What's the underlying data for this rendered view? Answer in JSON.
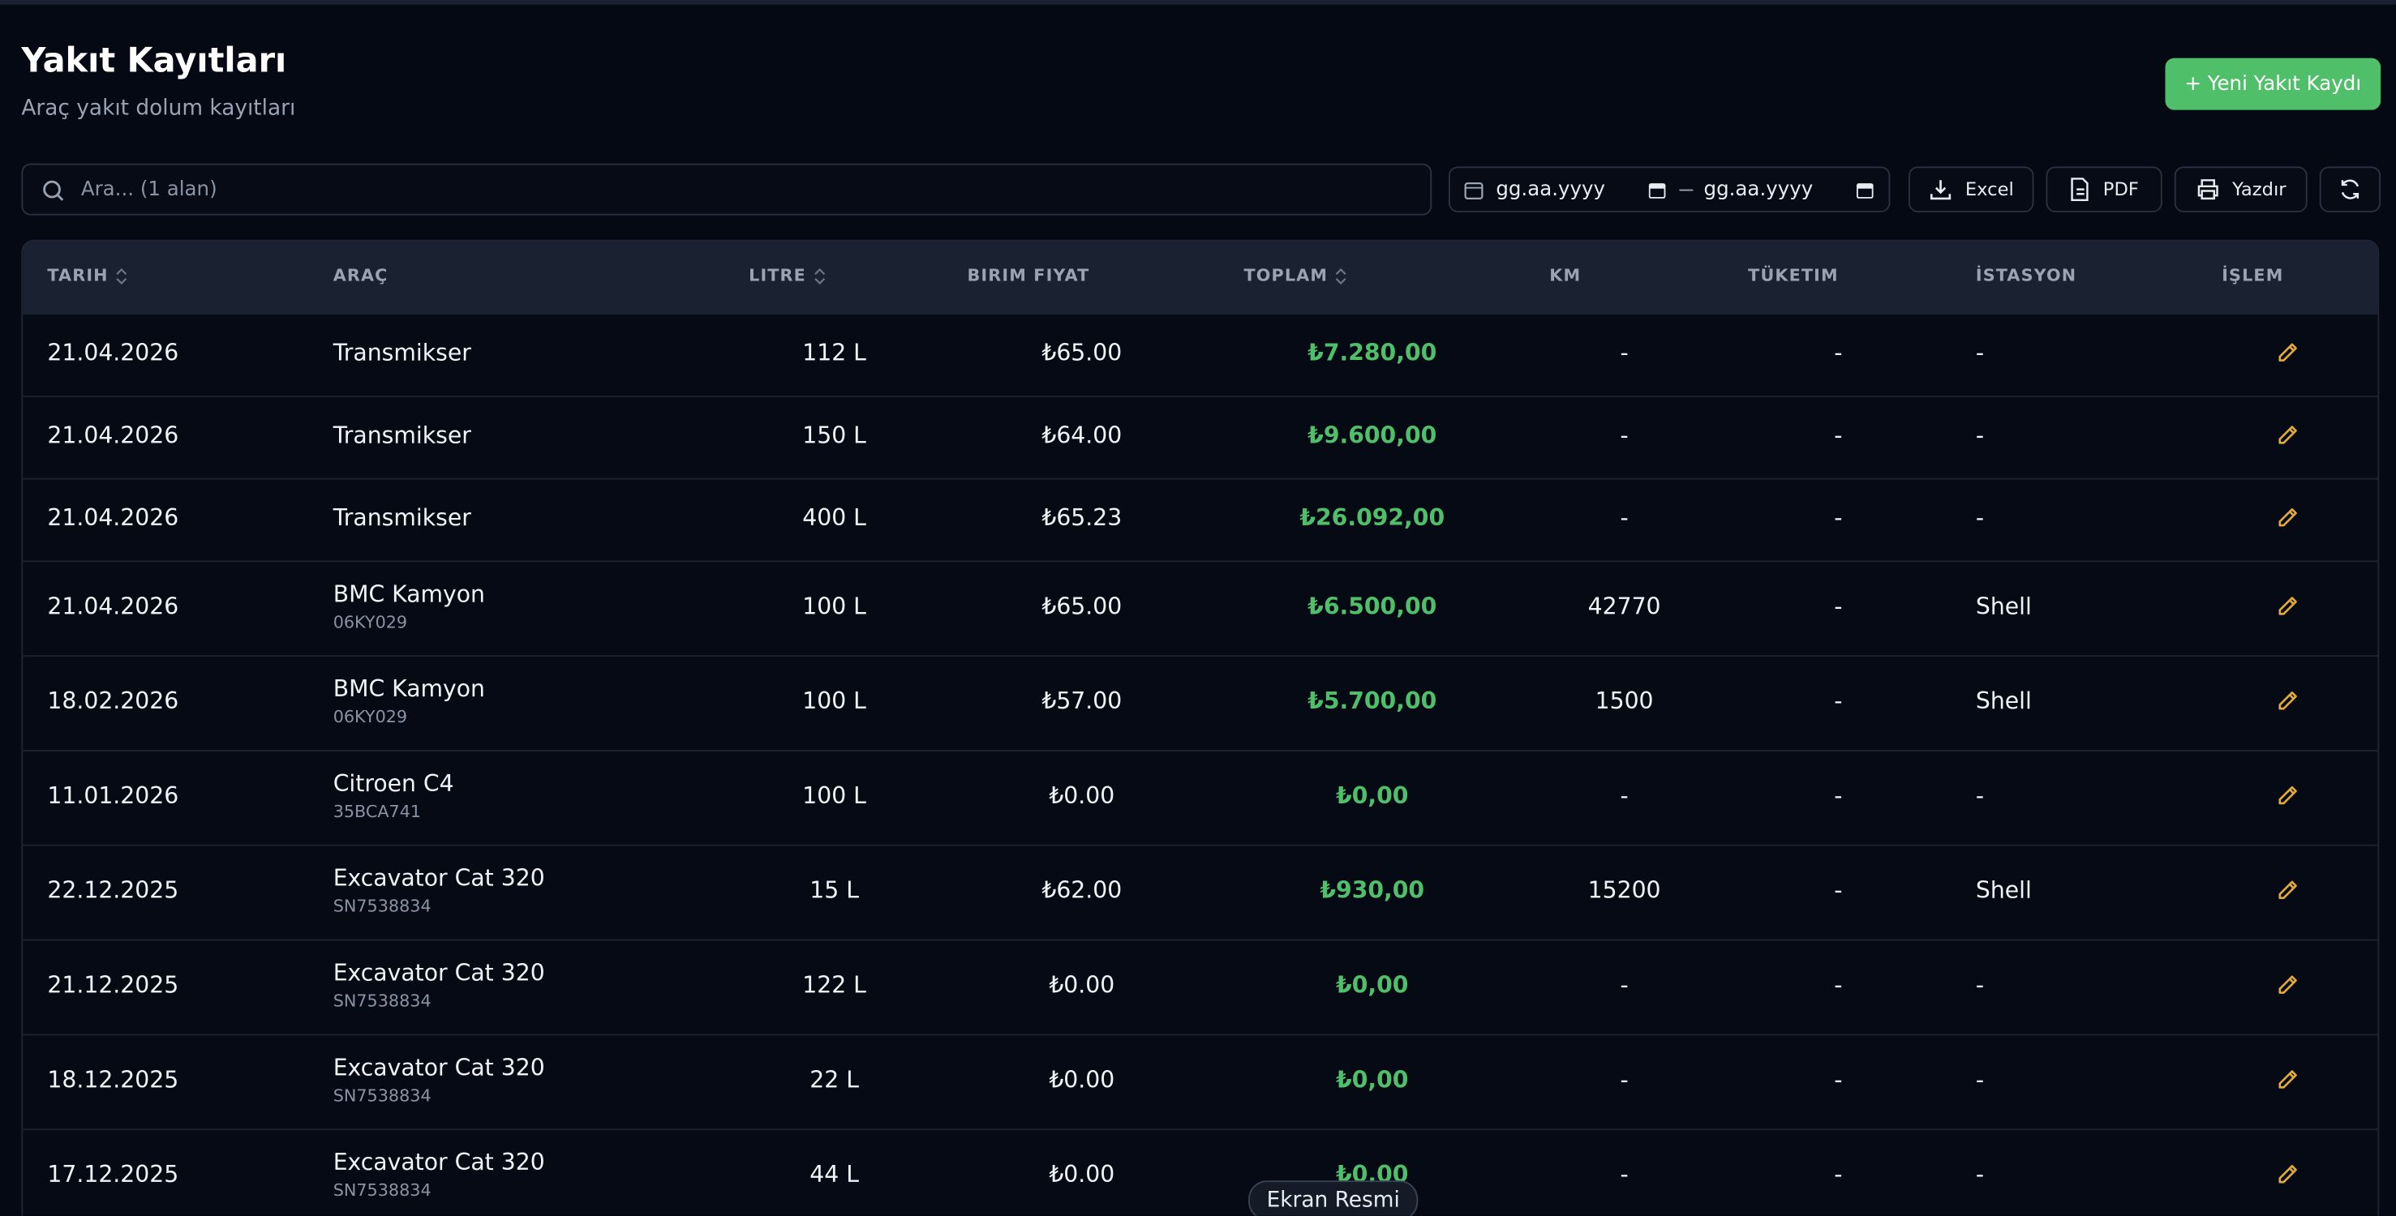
{
  "header": {
    "title": "Yakıt Kayıtları",
    "subtitle": "Araç yakıt dolum kayıtları",
    "new_button": "+ Yeni Yakıt Kaydı"
  },
  "toolbar": {
    "search_placeholder": "Ara... (1 alan)",
    "date_from": "gg.aa.yyyy",
    "date_to": "gg.aa.yyyy",
    "excel": "Excel",
    "pdf": "PDF",
    "print": "Yazdır"
  },
  "table": {
    "columns": [
      {
        "label": "TARIH",
        "sortable": true
      },
      {
        "label": "ARAÇ",
        "sortable": false
      },
      {
        "label": "LITRE",
        "sortable": true
      },
      {
        "label": "BIRIM FIYAT",
        "sortable": false
      },
      {
        "label": "TOPLAM",
        "sortable": true
      },
      {
        "label": "KM",
        "sortable": false
      },
      {
        "label": "TÜKETIM",
        "sortable": false
      },
      {
        "label": "İSTASYON",
        "sortable": false
      },
      {
        "label": "İŞLEM",
        "sortable": false
      }
    ],
    "rows": [
      {
        "date": "21.04.2026",
        "vehicle": "Transmikser",
        "litre": "112 L",
        "price": "₺65.00",
        "total": "₺7.280,00",
        "km": "-",
        "consumption": "-",
        "station": "-"
      },
      {
        "date": "21.04.2026",
        "vehicle": "Transmikser",
        "litre": "150 L",
        "price": "₺64.00",
        "total": "₺9.600,00",
        "km": "-",
        "consumption": "-",
        "station": "-"
      },
      {
        "date": "21.04.2026",
        "vehicle": "Transmikser",
        "litre": "400 L",
        "price": "₺65.23",
        "total": "₺26.092,00",
        "km": "-",
        "consumption": "-",
        "station": "-"
      },
      {
        "date": "21.04.2026",
        "vehicle": "BMC Kamyon",
        "plate": "06KY029",
        "litre": "100 L",
        "price": "₺65.00",
        "total": "₺6.500,00",
        "km": "42770",
        "consumption": "-",
        "station": "Shell"
      },
      {
        "date": "18.02.2026",
        "vehicle": "BMC Kamyon",
        "plate": "06KY029",
        "litre": "100 L",
        "price": "₺57.00",
        "total": "₺5.700,00",
        "km": "1500",
        "consumption": "-",
        "station": "Shell"
      },
      {
        "date": "11.01.2026",
        "vehicle": "Citroen C4",
        "plate": "35BCA741",
        "litre": "100 L",
        "price": "₺0.00",
        "total": "₺0,00",
        "km": "-",
        "consumption": "-",
        "station": "-"
      },
      {
        "date": "22.12.2025",
        "vehicle": "Excavator Cat 320",
        "plate": "SN7538834",
        "litre": "15 L",
        "price": "₺62.00",
        "total": "₺930,00",
        "km": "15200",
        "consumption": "-",
        "station": "Shell"
      },
      {
        "date": "21.12.2025",
        "vehicle": "Excavator Cat 320",
        "plate": "SN7538834",
        "litre": "122 L",
        "price": "₺0.00",
        "total": "₺0,00",
        "km": "-",
        "consumption": "-",
        "station": "-"
      },
      {
        "date": "18.12.2025",
        "vehicle": "Excavator Cat 320",
        "plate": "SN7538834",
        "litre": "22 L",
        "price": "₺0.00",
        "total": "₺0,00",
        "km": "-",
        "consumption": "-",
        "station": "-"
      },
      {
        "date": "17.12.2025",
        "vehicle": "Excavator Cat 320",
        "plate": "SN7538834",
        "litre": "44 L",
        "price": "₺0.00",
        "total": "₺0,00",
        "km": "-",
        "consumption": "-",
        "station": "-"
      }
    ]
  },
  "footer": {
    "tooltip": "Ekran Resmi"
  }
}
